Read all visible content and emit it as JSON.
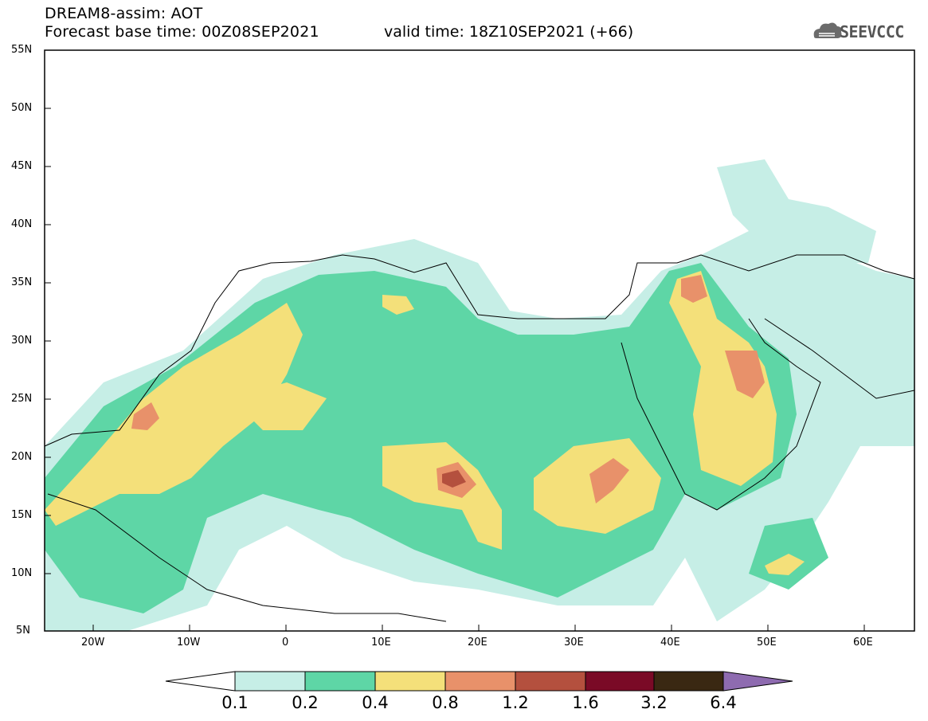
{
  "header": {
    "model_label": "DREAM8-assim: AOT",
    "base_time": "Forecast base time: 00Z08SEP2021",
    "valid_time": "valid time: 18Z10SEP2021 (+66)",
    "logo_text": "SEEVCCC"
  },
  "map": {
    "projection": "lat-lon",
    "lon_range": [
      -25,
      65
    ],
    "lat_range": [
      5,
      55
    ],
    "lat_ticks": [
      "55N",
      "50N",
      "45N",
      "40N",
      "35N",
      "30N",
      "25N",
      "20N",
      "15N",
      "10N",
      "5N"
    ],
    "lon_ticks": [
      "20W",
      "10W",
      "0",
      "10E",
      "20E",
      "30E",
      "40E",
      "50E",
      "60E"
    ],
    "field": "Aerosol optical thickness (dust)"
  },
  "colorbar": {
    "labels": [
      "0.1",
      "0.2",
      "0.4",
      "0.8",
      "1.2",
      "1.6",
      "3.2",
      "6.4"
    ],
    "colors": [
      "#c6eee6",
      "#5ed6a6",
      "#f4e07a",
      "#e8916a",
      "#b4503e",
      "#7a0a26",
      "#3a2812",
      "#8e6bb0"
    ]
  }
}
